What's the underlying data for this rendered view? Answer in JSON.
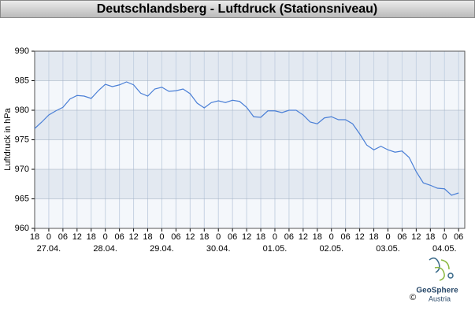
{
  "chart_data": {
    "type": "line",
    "title": "Deutschlandsberg - Luftdruck (Stationsniveau)",
    "y_label": "Luftdruck in hPa",
    "categories": [
      "18",
      null,
      "0",
      null,
      "06",
      null,
      "12",
      null,
      "18",
      null,
      "0",
      null,
      "06",
      null,
      "12",
      null,
      "18",
      null,
      "0",
      null,
      "06",
      null,
      "12",
      null,
      "18",
      null,
      "0",
      null,
      "06",
      null,
      "12",
      null,
      "18",
      null,
      "0",
      null,
      "06",
      null,
      "12",
      null,
      "18",
      null,
      "0",
      null,
      "06",
      null,
      "12",
      null,
      "18",
      null,
      "0",
      null,
      "06",
      null,
      "12",
      null,
      "18",
      null,
      "0",
      null,
      "06"
    ],
    "date_labels": [
      null,
      null,
      "27.04.",
      null,
      null,
      null,
      null,
      null,
      null,
      null,
      "28.04.",
      null,
      null,
      null,
      null,
      null,
      null,
      null,
      "29.04.",
      null,
      null,
      null,
      null,
      null,
      null,
      null,
      "30.04.",
      null,
      null,
      null,
      null,
      null,
      null,
      null,
      "01.05.",
      null,
      null,
      null,
      null,
      null,
      null,
      null,
      "02.05.",
      null,
      null,
      null,
      null,
      null,
      null,
      null,
      "03.05.",
      null,
      null,
      null,
      null,
      null,
      null,
      null,
      "04.05.",
      null,
      null
    ],
    "series": [
      {
        "name": "Luftdruck",
        "color": "#4a7fd6",
        "values": [
          976.9,
          978.0,
          979.2,
          979.9,
          980.5,
          981.9,
          982.5,
          982.4,
          982.0,
          983.3,
          984.4,
          984.0,
          984.3,
          984.8,
          984.3,
          982.9,
          982.4,
          983.6,
          983.9,
          983.2,
          983.3,
          983.6,
          982.8,
          981.2,
          980.4,
          981.3,
          981.6,
          981.3,
          981.7,
          981.5,
          980.5,
          978.9,
          978.8,
          979.9,
          979.9,
          979.6,
          980.0,
          980.0,
          979.2,
          978.0,
          977.7,
          978.7,
          978.9,
          978.4,
          978.4,
          977.7,
          976.0,
          974.1,
          973.3,
          973.9,
          973.3,
          972.9,
          973.1,
          972.0,
          969.6,
          967.7,
          967.3,
          966.8,
          966.7,
          965.6,
          966.0
        ]
      }
    ],
    "ylim": [
      960,
      990
    ],
    "yticks": [
      960,
      965,
      970,
      975,
      980,
      985,
      990
    ],
    "grid": true,
    "band_colors": [
      "#f4f7fb",
      "#e3e9f1"
    ]
  },
  "logo": {
    "name": "GeoSphere",
    "sub": "Austria",
    "copyright": "©"
  }
}
